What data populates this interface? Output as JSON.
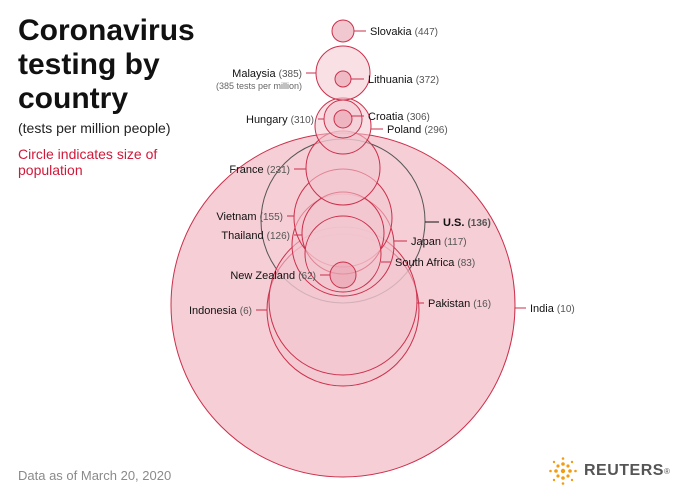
{
  "header": {
    "title": "Coronavirus testing by country",
    "subtitle": "(tests per million people)",
    "legend_note": "Circle indicates size of population"
  },
  "footer": {
    "note": "Data as of March 20, 2020",
    "brand": "REUTERS",
    "brand_mark": "®"
  },
  "colors": {
    "accent": "#d0193a",
    "fill": "#f3c6cf",
    "fill_inner": "#e89aaa",
    "stroke": "#cc2f4b",
    "us_stroke": "#555555"
  },
  "chart_data": {
    "type": "bubble",
    "title": "Coronavirus testing by country",
    "subtitle": "(tests per million people)",
    "size_encoding": "Circle indicates size of population",
    "value_label": "tests per million people",
    "points": [
      {
        "country": "Slovakia",
        "tests_per_million": 447
      },
      {
        "country": "Malaysia",
        "tests_per_million": 385,
        "note": "(385 tests per million)"
      },
      {
        "country": "Lithuania",
        "tests_per_million": 372
      },
      {
        "country": "Hungary",
        "tests_per_million": 310
      },
      {
        "country": "Croatia",
        "tests_per_million": 306
      },
      {
        "country": "Poland",
        "tests_per_million": 296
      },
      {
        "country": "France",
        "tests_per_million": 231
      },
      {
        "country": "Vietnam",
        "tests_per_million": 155
      },
      {
        "country": "U.S.",
        "tests_per_million": 136,
        "highlight": true
      },
      {
        "country": "Thailand",
        "tests_per_million": 126
      },
      {
        "country": "Japan",
        "tests_per_million": 117
      },
      {
        "country": "South Africa",
        "tests_per_million": 83
      },
      {
        "country": "New Zealand",
        "tests_per_million": 62
      },
      {
        "country": "Pakistan",
        "tests_per_million": 16
      },
      {
        "country": "India",
        "tests_per_million": 10
      },
      {
        "country": "Indonesia",
        "tests_per_million": 6
      }
    ]
  }
}
